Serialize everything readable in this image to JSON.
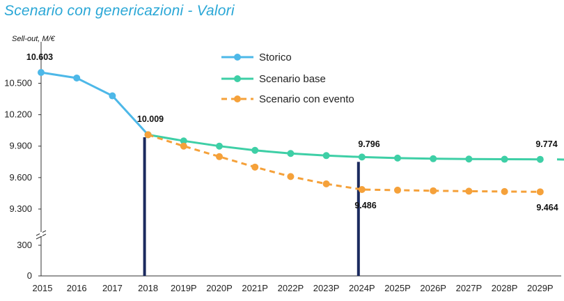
{
  "title": "Scenario con genericazioni - Valori",
  "chart_data": {
    "type": "line",
    "ylabel": "Sell-out, M/€",
    "categories": [
      "2015",
      "2016",
      "2017",
      "2018",
      "2019P",
      "2020P",
      "2021P",
      "2022P",
      "2023P",
      "2024P",
      "2025P",
      "2026P",
      "2027P",
      "2028P",
      "2029P"
    ],
    "y_ticks_upper": [
      9300,
      9600,
      9900,
      10200,
      10500
    ],
    "y_ticks_upper_labels": [
      "9.300",
      "9.600",
      "9.900",
      "10.200",
      "10.500"
    ],
    "y_ticks_lower": [
      0,
      300
    ],
    "y_ticks_lower_labels": [
      "0",
      "300"
    ],
    "axis_break": true,
    "series": [
      {
        "name": "Storico",
        "color": "#4db8e8",
        "values": [
          10603,
          10550,
          10380,
          10009,
          null,
          null,
          null,
          null,
          null,
          null,
          null,
          null,
          null,
          null,
          null
        ]
      },
      {
        "name": "Scenario base",
        "color": "#3ecfa6",
        "values": [
          null,
          null,
          null,
          10009,
          9950,
          9900,
          9860,
          9830,
          9810,
          9796,
          9786,
          9780,
          9777,
          9775,
          9774
        ]
      },
      {
        "name": "Scenario con evento",
        "color": "#f5a13a",
        "dashed": true,
        "values": [
          null,
          null,
          null,
          10009,
          9900,
          9800,
          9700,
          9610,
          9540,
          9486,
          9480,
          9474,
          9470,
          9467,
          9464
        ]
      }
    ],
    "data_labels": [
      {
        "text": "10.603",
        "category": "2015",
        "value": 10603
      },
      {
        "text": "10.009",
        "category": "2018",
        "value": 10009
      },
      {
        "text": "9.796",
        "category": "2024P",
        "value": 9796
      },
      {
        "text": "9.486",
        "category": "2024P",
        "value": 9486
      },
      {
        "text": "9.774",
        "category": "2029P",
        "value": 9774
      },
      {
        "text": "9.464",
        "category": "2029P",
        "value": 9464
      }
    ],
    "markers": [
      "2018",
      "2024P"
    ],
    "legend": "top-center"
  }
}
